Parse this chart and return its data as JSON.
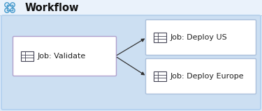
{
  "title": "Workflow",
  "bg_page": "#dce9f8",
  "bg_panel": "#ccdff2",
  "box_fill": "#ffffff",
  "box_edge_validate": "#b0a0cc",
  "box_edge_deploy": "#aabfdb",
  "arrow_color": "#333333",
  "text_color": "#222222",
  "title_color": "#111111",
  "validate_label": "Job: Validate",
  "deploy_us_label": "Job: Deploy US",
  "deploy_eu_label": "Job: Deploy Europe",
  "icon_color": "#444455",
  "font_size_title": 10.5,
  "font_size_label": 8.0,
  "title_icon_color": "#4499cc"
}
